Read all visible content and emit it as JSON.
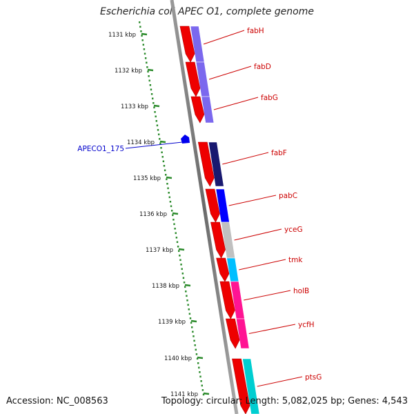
{
  "title": "Escherichia coli APEC O1, complete genome",
  "footer": {
    "accession": "Accession: NC_008563",
    "stats": "Topology: circular; Length: 5,082,025 bp; Genes: 4,543"
  },
  "colors": {
    "backbone": "#808080",
    "gc_skew_dots": "#2a8a2a",
    "gene_label": "#cc0000",
    "orf_label": "#0000cc",
    "forward_cds": "#ee0000",
    "orf_marker": "#0000ee"
  },
  "scale": {
    "unit": "kbp",
    "ticks": [
      "1131 kbp",
      "1132 kbp",
      "1133 kbp",
      "1134 kbp",
      "1135 kbp",
      "1136 kbp",
      "1137 kbp",
      "1138 kbp",
      "1139 kbp",
      "1140 kbp",
      "1141 kbp"
    ]
  },
  "features": {
    "orf": {
      "label": "APECO1_175",
      "color": "#0000ee"
    },
    "genes": [
      {
        "name": "fabH",
        "cog_color": "#7b68ee"
      },
      {
        "name": "fabD",
        "cog_color": "#7b68ee"
      },
      {
        "name": "fabG",
        "cog_color": "#7b68ee"
      },
      {
        "name": "fabF",
        "cog_color": "#191970"
      },
      {
        "name": "pabC",
        "cog_color": "#0000ff"
      },
      {
        "name": "yceG",
        "cog_color": "#c0c0c0"
      },
      {
        "name": "tmk",
        "cog_color": "#00bfff"
      },
      {
        "name": "holB",
        "cog_color": "#ff1493"
      },
      {
        "name": "ycfH",
        "cog_color": "#ff1493"
      },
      {
        "name": "ptsG",
        "cog_color": "#00ced1"
      }
    ]
  }
}
